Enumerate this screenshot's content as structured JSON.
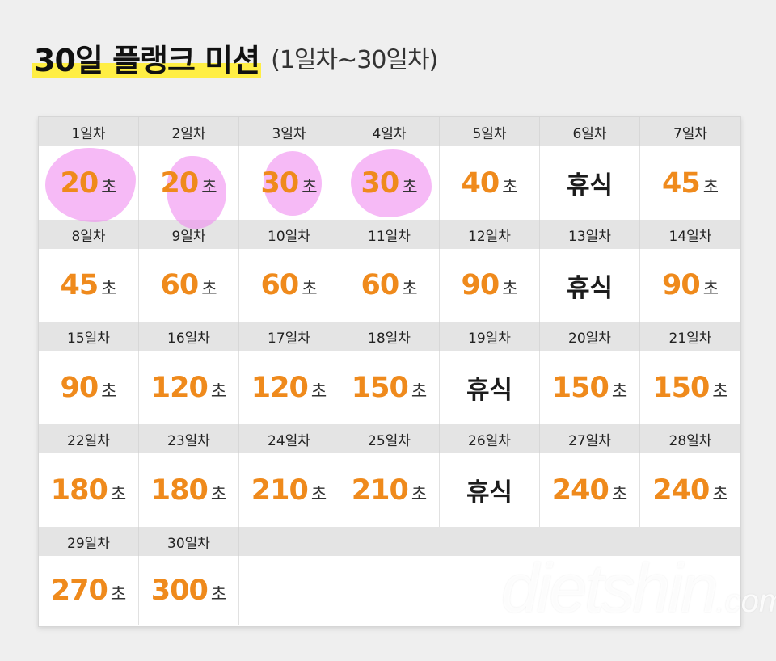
{
  "title": {
    "main": "30일 플랭크 미션",
    "sub": "(1일차~30일차)"
  },
  "unit": "초",
  "rest_label": "휴식",
  "watermark": "dietshin",
  "watermark_tld": ".com",
  "highlight_color": "#f08cf0",
  "accent_color": "#ef8a1c",
  "weeks": [
    {
      "days": [
        {
          "label": "1일차",
          "value": "20",
          "rest": false,
          "marked": true
        },
        {
          "label": "2일차",
          "value": "20",
          "rest": false,
          "marked": true
        },
        {
          "label": "3일차",
          "value": "30",
          "rest": false,
          "marked": true
        },
        {
          "label": "4일차",
          "value": "30",
          "rest": false,
          "marked": true
        },
        {
          "label": "5일차",
          "value": "40",
          "rest": false
        },
        {
          "label": "6일차",
          "value": "",
          "rest": true
        },
        {
          "label": "7일차",
          "value": "45",
          "rest": false
        }
      ]
    },
    {
      "days": [
        {
          "label": "8일차",
          "value": "45",
          "rest": false
        },
        {
          "label": "9일차",
          "value": "60",
          "rest": false
        },
        {
          "label": "10일차",
          "value": "60",
          "rest": false
        },
        {
          "label": "11일차",
          "value": "60",
          "rest": false
        },
        {
          "label": "12일차",
          "value": "90",
          "rest": false
        },
        {
          "label": "13일차",
          "value": "",
          "rest": true
        },
        {
          "label": "14일차",
          "value": "90",
          "rest": false
        }
      ]
    },
    {
      "days": [
        {
          "label": "15일차",
          "value": "90",
          "rest": false
        },
        {
          "label": "16일차",
          "value": "120",
          "rest": false
        },
        {
          "label": "17일차",
          "value": "120",
          "rest": false
        },
        {
          "label": "18일차",
          "value": "150",
          "rest": false
        },
        {
          "label": "19일차",
          "value": "",
          "rest": true
        },
        {
          "label": "20일차",
          "value": "150",
          "rest": false
        },
        {
          "label": "21일차",
          "value": "150",
          "rest": false
        }
      ]
    },
    {
      "days": [
        {
          "label": "22일차",
          "value": "180",
          "rest": false
        },
        {
          "label": "23일차",
          "value": "180",
          "rest": false
        },
        {
          "label": "24일차",
          "value": "210",
          "rest": false
        },
        {
          "label": "25일차",
          "value": "210",
          "rest": false
        },
        {
          "label": "26일차",
          "value": "",
          "rest": true
        },
        {
          "label": "27일차",
          "value": "240",
          "rest": false
        },
        {
          "label": "28일차",
          "value": "240",
          "rest": false
        }
      ]
    },
    {
      "days": [
        {
          "label": "29일차",
          "value": "270",
          "rest": false
        },
        {
          "label": "30일차",
          "value": "300",
          "rest": false
        }
      ]
    }
  ]
}
